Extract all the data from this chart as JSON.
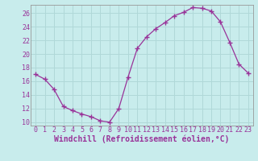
{
  "x": [
    0,
    1,
    2,
    3,
    4,
    5,
    6,
    7,
    8,
    9,
    10,
    11,
    12,
    13,
    14,
    15,
    16,
    17,
    18,
    19,
    20,
    21,
    22,
    23
  ],
  "y": [
    17.0,
    16.3,
    14.8,
    12.3,
    11.7,
    11.2,
    10.8,
    10.2,
    10.0,
    12.0,
    16.6,
    20.8,
    22.5,
    23.7,
    24.6,
    25.6,
    26.1,
    26.8,
    26.7,
    26.3,
    24.7,
    21.7,
    18.5,
    17.2
  ],
  "line_color": "#993399",
  "marker": "+",
  "marker_size": 4,
  "marker_linewidth": 1.0,
  "linewidth": 0.9,
  "xlabel": "Windchill (Refroidissement éolien,°C)",
  "xlabel_fontsize": 7,
  "ylim": [
    9.5,
    27.2
  ],
  "xlim": [
    -0.5,
    23.5
  ],
  "yticks": [
    10,
    12,
    14,
    16,
    18,
    20,
    22,
    24,
    26
  ],
  "xticks": [
    0,
    1,
    2,
    3,
    4,
    5,
    6,
    7,
    8,
    9,
    10,
    11,
    12,
    13,
    14,
    15,
    16,
    17,
    18,
    19,
    20,
    21,
    22,
    23
  ],
  "bg_color": "#c8ecec",
  "grid_color": "#b0d8d8",
  "tick_color": "#993399",
  "tick_fontsize": 6,
  "spine_color": "#999999"
}
